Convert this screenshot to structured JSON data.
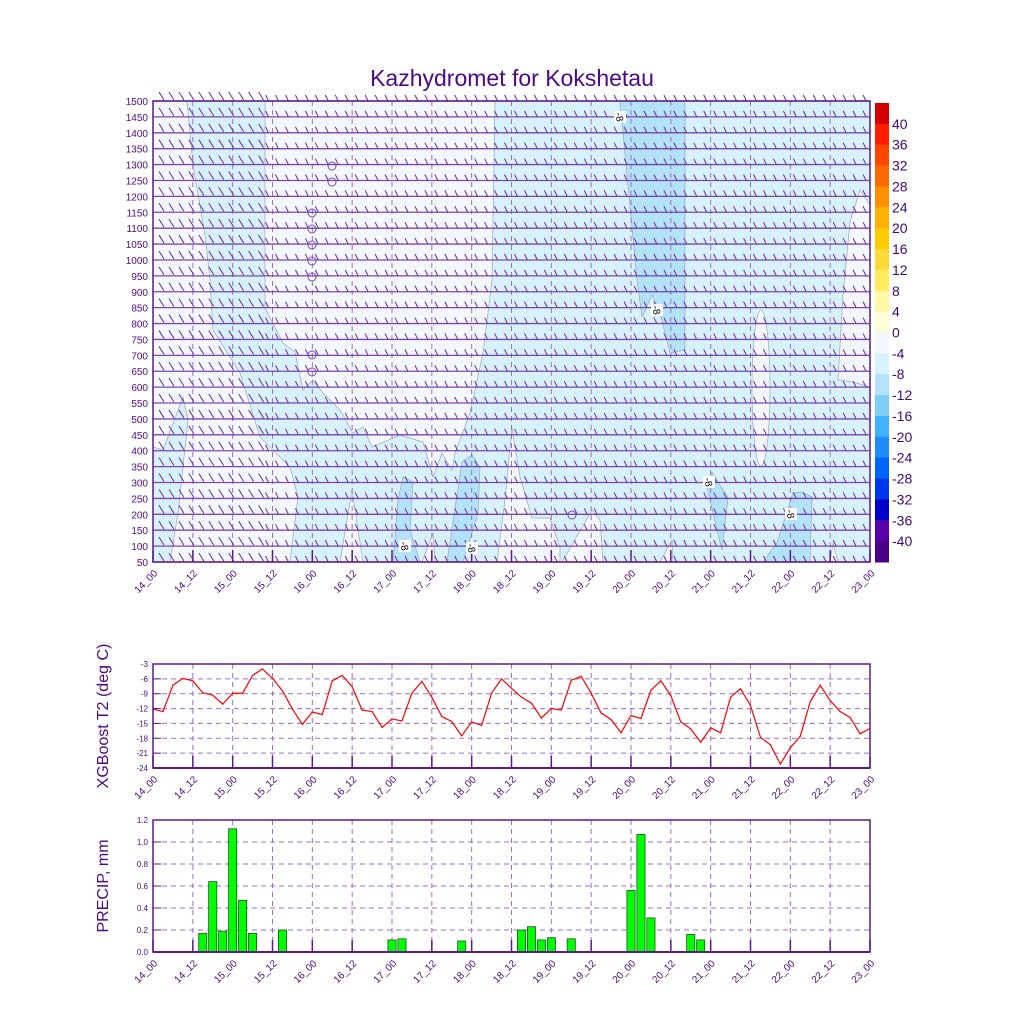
{
  "title": "Kazhydromet for Kokshetau",
  "x_tick_labels": [
    "14_00",
    "14_12",
    "15_00",
    "15_12",
    "16_00",
    "16_12",
    "17_00",
    "17_12",
    "18_00",
    "18_12",
    "19_00",
    "19_12",
    "20_00",
    "20_12",
    "21_00",
    "21_12",
    "22_00",
    "22_12",
    "23_00"
  ],
  "chart_data": [
    {
      "type": "heatmap",
      "description_kind": "time-height temperature contours with wind barbs",
      "levels": [
        1500,
        1450,
        1400,
        1350,
        1300,
        1250,
        1200,
        1150,
        1100,
        1050,
        1000,
        950,
        900,
        850,
        800,
        750,
        700,
        650,
        600,
        550,
        500,
        450,
        400,
        350,
        300,
        250,
        200,
        150,
        100,
        50
      ],
      "colorbar_labels": [
        "40",
        "36",
        "32",
        "28",
        "24",
        "20",
        "16",
        "12",
        "8",
        "4",
        "0",
        "-4",
        "-8",
        "-12",
        "-16",
        "-20",
        "-24",
        "-28",
        "-32",
        "-36",
        "-40"
      ],
      "colorbar_colors": [
        "#d40000",
        "#ff1e00",
        "#ff4600",
        "#ff6a00",
        "#ff9000",
        "#ffb000",
        "#ffcc00",
        "#ffd83a",
        "#ffea5e",
        "#fff9a6",
        "#fffcd8",
        "#f3f8fe",
        "#d8f2fd",
        "#b4e2f9",
        "#7ccef6",
        "#40b2fb",
        "#1e8cff",
        "#0064ff",
        "#0036f0",
        "#0000cc",
        "#5a00aa",
        "#4b0088"
      ],
      "contour_label": "-8",
      "xlim_hours": [
        0,
        216
      ]
    },
    {
      "type": "line",
      "ylabel": "XGBoost T2 (deg C)",
      "ylim": [
        -24,
        -3
      ],
      "yticks": [
        "-3",
        "-6",
        "-9",
        "-12",
        "-15",
        "-18",
        "-21",
        "-24"
      ],
      "x_step_hours": 3,
      "color": "#ff0000",
      "values": [
        -12.1,
        -12.6,
        -7.3,
        -5.9,
        -6.4,
        -8.8,
        -9.3,
        -11.1,
        -8.9,
        -8.9,
        -5.3,
        -4.0,
        -5.9,
        -8.4,
        -12.1,
        -15.2,
        -12.7,
        -13.2,
        -6.4,
        -5.3,
        -7.6,
        -12.3,
        -12.6,
        -15.8,
        -14.1,
        -14.5,
        -8.9,
        -6.5,
        -9.7,
        -13.6,
        -14.6,
        -17.5,
        -14.7,
        -15.4,
        -8.9,
        -6.0,
        -7.9,
        -9.7,
        -10.9,
        -13.9,
        -12.0,
        -12.3,
        -6.3,
        -5.5,
        -8.9,
        -12.9,
        -14.2,
        -16.9,
        -13.4,
        -14.0,
        -8.3,
        -6.4,
        -9.4,
        -14.7,
        -16.1,
        -18.8,
        -15.9,
        -16.9,
        -9.7,
        -8.0,
        -11.4,
        -17.8,
        -19.3,
        -23.2,
        -19.9,
        -17.6,
        -10.6,
        -7.3,
        -10.4,
        -12.6,
        -13.8,
        -17.1,
        -16.0
      ]
    },
    {
      "type": "bar",
      "ylabel": "PRECIP, mm",
      "ylim": [
        0,
        1.2
      ],
      "yticks": [
        "0.0",
        "0.2",
        "0.4",
        "0.6",
        "0.8",
        "1.0",
        "1.2"
      ],
      "color": "#00ff00",
      "hours": [
        15,
        18,
        21,
        24,
        27,
        30,
        39,
        72,
        75,
        93,
        111,
        114,
        117,
        120,
        126,
        144,
        147,
        150,
        162,
        165
      ],
      "values": [
        0.17,
        0.64,
        0.19,
        1.12,
        0.47,
        0.17,
        0.2,
        0.11,
        0.12,
        0.1,
        0.2,
        0.23,
        0.11,
        0.13,
        0.12,
        0.56,
        1.07,
        0.31,
        0.16,
        0.11
      ]
    }
  ]
}
